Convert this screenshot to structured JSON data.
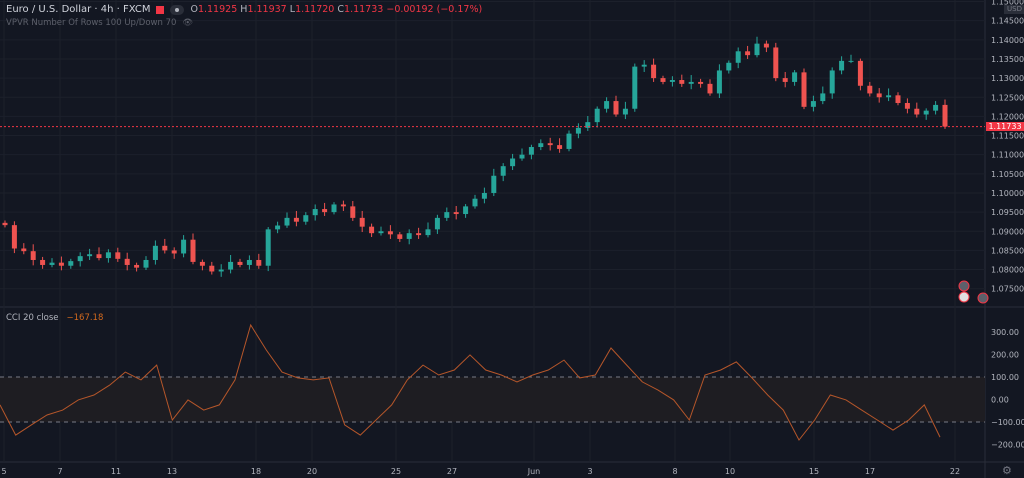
{
  "header": {
    "symbol": "Euro / U.S. Dollar · 4h · FXCM",
    "ohlc": {
      "o_label": "O",
      "o": "1.11925",
      "h_label": "H",
      "h": "1.11937",
      "l_label": "L",
      "l": "1.11720",
      "c_label": "C",
      "c": "1.11733",
      "change": "−0.00192 (−0.17%)"
    },
    "indicator": "VPVR Number Of Rows 100 Up/Down 70",
    "currency": "USD"
  },
  "colors": {
    "background": "#131722",
    "up": "#26a69a",
    "down": "#ef5350",
    "price_line": "#f23645",
    "cci_line": "#b5562a"
  },
  "chart_data": [
    {
      "type": "candlestick",
      "title": "Euro / U.S. Dollar · 4h · FXCM",
      "ylim": [
        1.07,
        1.15
      ],
      "y_ticks": [
        "1.15000",
        "1.14500",
        "1.14000",
        "1.13500",
        "1.13000",
        "1.12500",
        "1.12000",
        "1.11500",
        "1.11000",
        "1.10500",
        "1.10000",
        "1.09500",
        "1.09000",
        "1.08500",
        "1.08000",
        "1.07500"
      ],
      "x_ticks": [
        "5",
        "7",
        "11",
        "13",
        "18",
        "20",
        "25",
        "27",
        "Jun",
        "3",
        "8",
        "10",
        "15",
        "17",
        "22"
      ],
      "last_price": "1.11733",
      "close": [
        1.0916,
        1.0855,
        1.0848,
        1.0825,
        1.0812,
        1.0818,
        1.081,
        1.0822,
        1.0835,
        1.084,
        1.083,
        1.0845,
        1.0828,
        1.0812,
        1.0805,
        1.0825,
        1.0862,
        1.085,
        1.0842,
        1.0878,
        1.082,
        1.081,
        1.0795,
        1.08,
        1.082,
        1.0812,
        1.0825,
        1.081,
        1.0905,
        1.0915,
        1.0935,
        1.0925,
        1.0942,
        1.0958,
        1.095,
        1.097,
        1.0965,
        1.0935,
        1.0912,
        1.0895,
        1.09,
        1.0892,
        1.088,
        1.0895,
        1.089,
        1.0905,
        1.0935,
        1.095,
        1.0945,
        1.0965,
        1.0985,
        1.1,
        1.1045,
        1.107,
        1.109,
        1.11,
        1.112,
        1.113,
        1.1125,
        1.1115,
        1.1155,
        1.117,
        1.1185,
        1.122,
        1.124,
        1.1205,
        1.122,
        1.133,
        1.1335,
        1.13,
        1.129,
        1.1295,
        1.1285,
        1.129,
        1.1285,
        1.126,
        1.132,
        1.134,
        1.137,
        1.136,
        1.139,
        1.138,
        1.13,
        1.129,
        1.1315,
        1.1225,
        1.124,
        1.126,
        1.132,
        1.1345,
        1.1345,
        1.128,
        1.126,
        1.125,
        1.1255,
        1.1235,
        1.122,
        1.1205,
        1.1215,
        1.123,
        1.11733
      ]
    },
    {
      "type": "line",
      "title": "CCI 20 close",
      "last_value": "−167.18",
      "ylim": [
        -250,
        350
      ],
      "y_ticks": [
        "300.00",
        "200.00",
        "100.00",
        "0.00",
        "−100.00",
        "−200.00"
      ],
      "band": [
        -100,
        100
      ],
      "values": [
        -24,
        -158,
        -113,
        -69,
        -47,
        -2,
        20,
        64,
        122,
        87,
        153,
        -91,
        -2,
        -47,
        -24,
        87,
        331,
        220,
        122,
        96,
        87,
        96,
        -113,
        -158,
        -91,
        -24,
        87,
        153,
        109,
        131,
        198,
        131,
        109,
        78,
        109,
        131,
        175,
        96,
        109,
        229,
        153,
        78,
        42,
        -2,
        -91,
        109,
        131,
        167,
        96,
        20,
        -47,
        -180,
        -91,
        20,
        -2,
        -47,
        -91,
        -136,
        -91,
        -24,
        -167
      ]
    }
  ]
}
